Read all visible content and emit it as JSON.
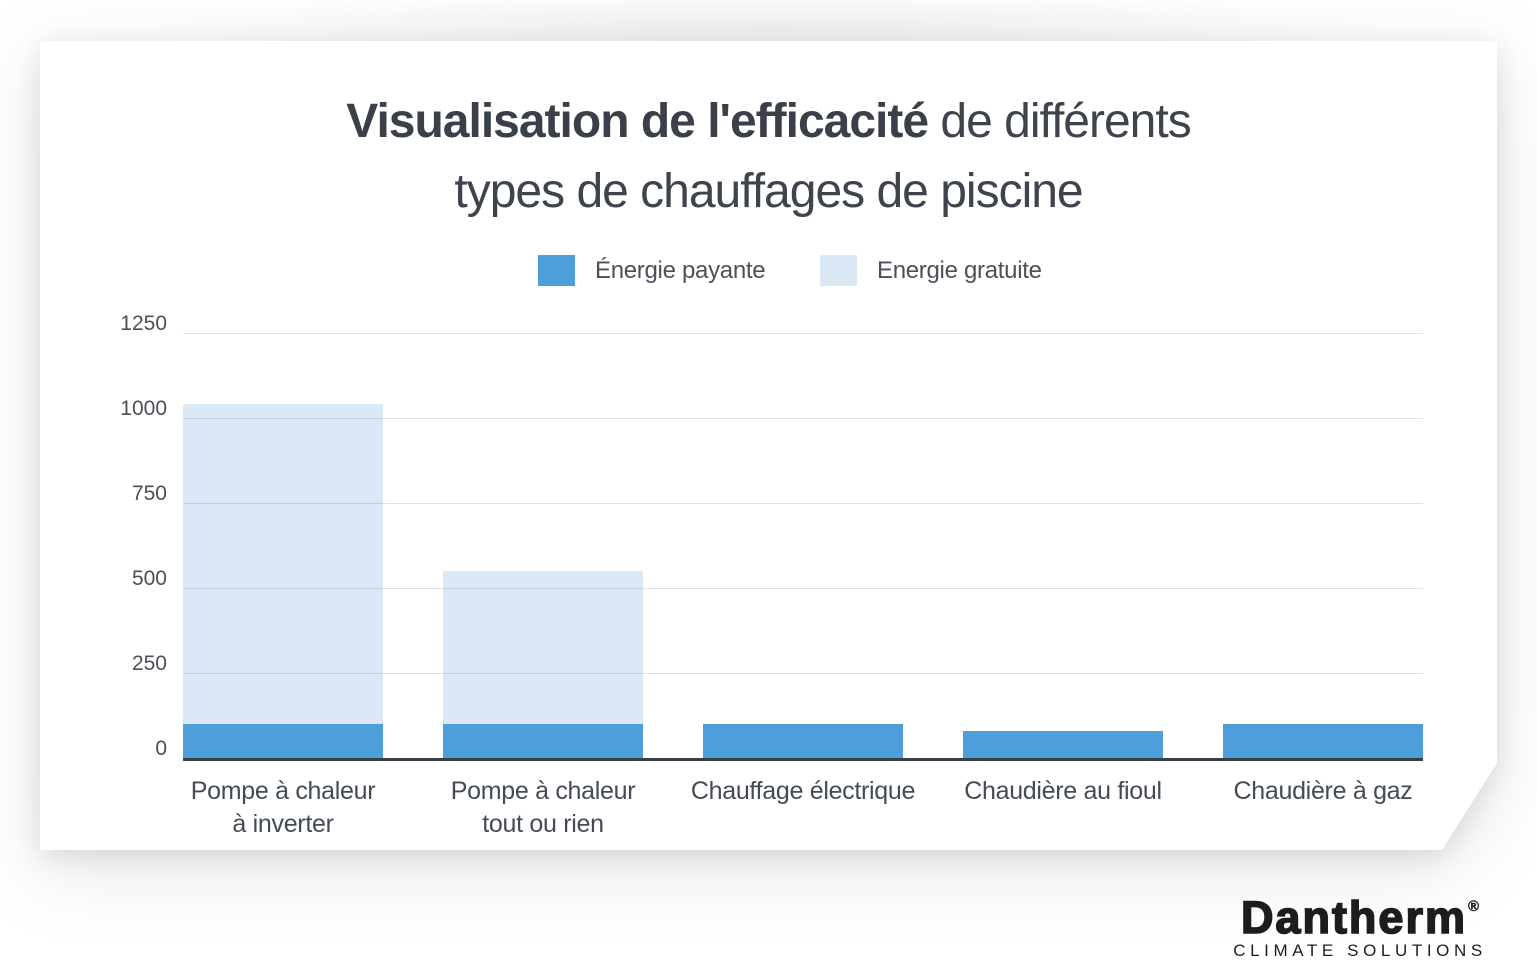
{
  "title": {
    "bold": "Visualisation de l'efficacité",
    "tail": " de différents",
    "line2": "types de chauffages de piscine"
  },
  "legend": {
    "items": [
      {
        "label": "Énergie payante",
        "color": "#4d9ed9"
      },
      {
        "label": "Energie gratuite",
        "color": "#dbe9f6"
      }
    ]
  },
  "chart_data": {
    "type": "bar",
    "stacked": true,
    "title": "Visualisation de l'efficacité de différents types de chauffages de piscine",
    "categories": [
      "Pompe à chaleur à inverter",
      "Pompe à chaleur tout ou rien",
      "Chauffage électrique",
      "Chaudière au fioul",
      "Chaudière à gaz"
    ],
    "category_lines": [
      [
        "Pompe à chaleur",
        "à inverter"
      ],
      [
        "Pompe à chaleur",
        "tout ou rien"
      ],
      [
        "Chauffage électrique"
      ],
      [
        "Chaudière au fioul"
      ],
      [
        "Chaudière à gaz"
      ]
    ],
    "series": [
      {
        "name": "Énergie payante",
        "color": "#4d9ed9",
        "values": [
          100,
          100,
          100,
          80,
          100
        ]
      },
      {
        "name": "Energie gratuite",
        "color": "#dbe9f6",
        "values": [
          940,
          450,
          0,
          0,
          0
        ]
      }
    ],
    "totals": [
      1040,
      550,
      100,
      80,
      100
    ],
    "yticks": [
      0,
      250,
      500,
      750,
      1000,
      1250
    ],
    "ylim": [
      0,
      1250
    ],
    "grid": true,
    "legend_position": "top",
    "axis_color": "#383f46",
    "grid_color": "#dee2e8"
  },
  "logo": {
    "brand": "Dantherm",
    "registered": "®",
    "tagline": "CLIMATE SOLUTIONS"
  }
}
